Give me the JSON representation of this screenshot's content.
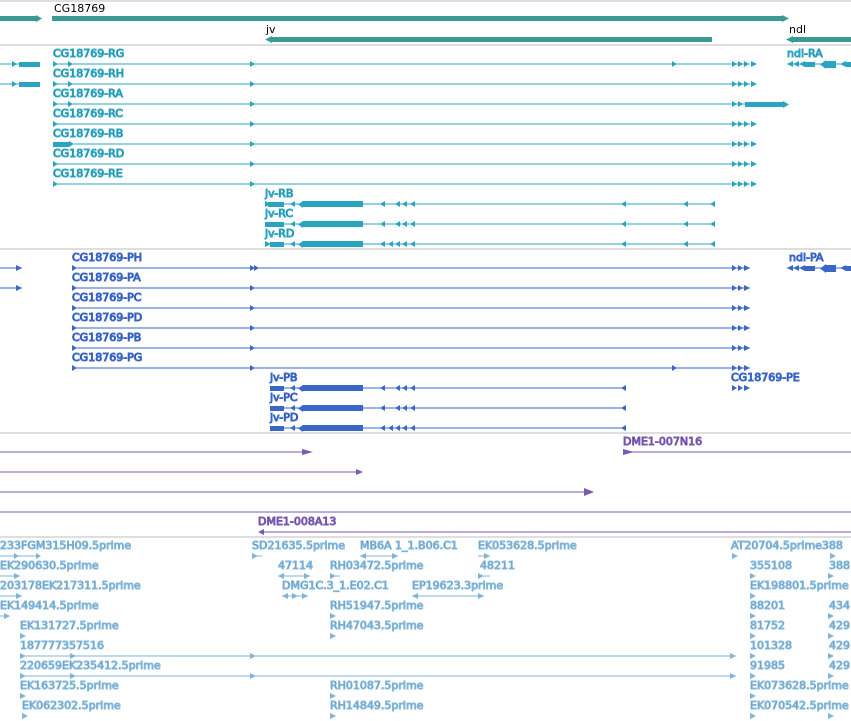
{
  "colors": {
    "gene": "#3a9a94",
    "transcript": "#2aa4c0",
    "protein": "#3a66c8",
    "clone": "#7a5ab0",
    "est": "#7eb4d8",
    "divider": "#bdbdbd"
  },
  "genes": {
    "cg18769": "CG18769",
    "jv": "jv",
    "ndl": "ndl"
  },
  "transcripts": {
    "rg": "CG18769-RG",
    "rh": "CG18769-RH",
    "ra": "CG18769-RA",
    "rc": "CG18769-RC",
    "rb": "CG18769-RB",
    "rd": "CG18769-RD",
    "re": "CG18769-RE",
    "jv_rb": "jv-RB",
    "jv_rc": "jv-RC",
    "jv_rd": "jv-RD",
    "ndl_ra": "ndl-RA"
  },
  "proteins": {
    "ph": "CG18769-PH",
    "pa": "CG18769-PA",
    "pc": "CG18769-PC",
    "pd": "CG18769-PD",
    "pb": "CG18769-PB",
    "pg": "CG18769-PG",
    "jv_pb": "jv-PB",
    "jv_pc": "jv-PC",
    "jv_pd": "jv-PD",
    "pe": "CG18769-PE",
    "ndl_pa": "ndl-PA"
  },
  "clones": {
    "n16": "DME1-007N16",
    "a13": "DME1-008A13"
  },
  "ests": {
    "e1": "233FGM315H09.5prime",
    "e2": "SD21635.5prime",
    "e3": "MB6A 1_1.B06.C1",
    "e4": "EK053628.5prime",
    "e5": "AT20704.5prime388",
    "e6": "EK290630.5prime",
    "e7": "47114",
    "e8": "RH03472.5prime",
    "e9": "48211",
    "e10": "355108",
    "e11": "388",
    "e12": "203178EK217311.5prime",
    "e13": "DMG1C.3_1.E02.C1",
    "e14": "EP19623.3prime",
    "e15": "EK198801.5prime",
    "e16": "EK149414.5prime",
    "e17": "RH51947.5prime",
    "e18": "88201",
    "e19": "434",
    "e20": "EK131727.5prime",
    "e21": "RH47043.5prime",
    "e22": "81752",
    "e23": "429",
    "e24": "187777357516",
    "e25": "101328",
    "e26": "429",
    "e27": "220659EK235412.5prime",
    "e28": "91985",
    "e29": "429",
    "e30": "EK163725.5prime",
    "e31": "RH01087.5prime",
    "e32": "EK073628.5prime",
    "e33": "EK062302.5prime",
    "e34": "RH14849.5prime",
    "e35": "EK070542.5prime"
  }
}
